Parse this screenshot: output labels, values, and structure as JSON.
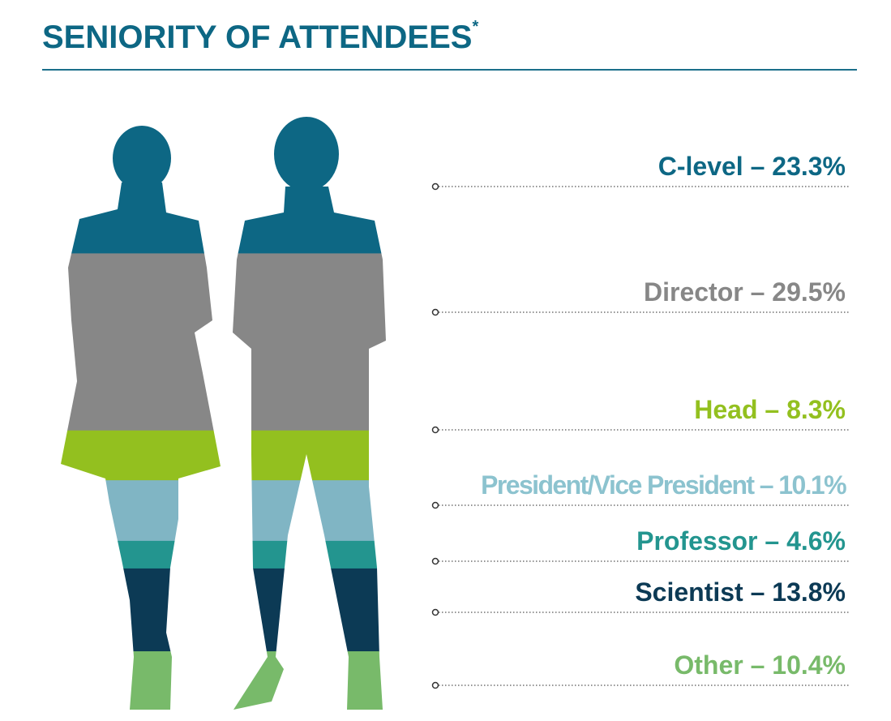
{
  "chart_data": {
    "type": "pictorial-stack",
    "title": "SENIORITY OF ATTENDEES",
    "title_marker": "*",
    "separator": " – ",
    "categories": [
      "C-level",
      "Director",
      "Head",
      "President/Vice President",
      "Professor",
      "Scientist",
      "Other"
    ],
    "values": [
      23.3,
      29.5,
      8.3,
      10.1,
      4.6,
      13.8,
      10.4
    ],
    "value_labels": [
      "23.3%",
      "29.5%",
      "8.3%",
      "10.1%",
      "4.6%",
      "13.8%",
      "10.4%"
    ],
    "colors": [
      "#0d6784",
      "#878787",
      "#93c01f",
      "#80b5c4",
      "#23958f",
      "#0c3a55",
      "#78ba6a"
    ]
  }
}
